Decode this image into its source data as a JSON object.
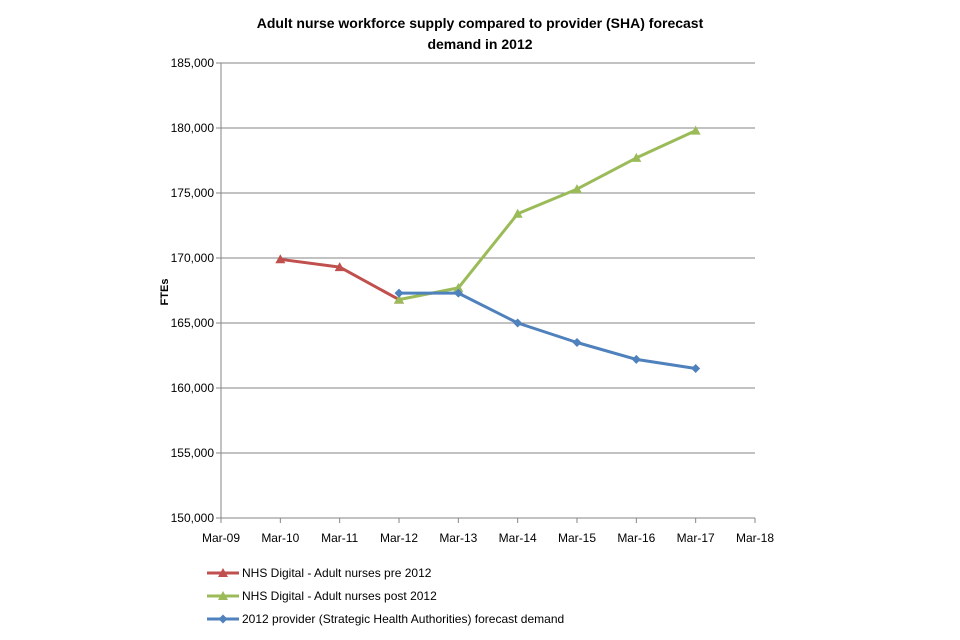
{
  "chart_data": {
    "type": "line",
    "title_lines": [
      "Adult nurse workforce supply compared to provider (SHA) forecast",
      "demand in 2012"
    ],
    "xlabel": "",
    "ylabel": "FTEs",
    "categories": [
      "Mar-09",
      "Mar-10",
      "Mar-11",
      "Mar-12",
      "Mar-13",
      "Mar-14",
      "Mar-15",
      "Mar-16",
      "Mar-17",
      "Mar-18"
    ],
    "ylim": [
      150000,
      185000
    ],
    "yticks": [
      150000,
      155000,
      160000,
      165000,
      170000,
      175000,
      180000,
      185000
    ],
    "ytick_labels": [
      "150,000",
      "155,000",
      "160,000",
      "165,000",
      "170,000",
      "175,000",
      "180,000",
      "185,000"
    ],
    "grid": true,
    "legend_position": "bottom",
    "series": [
      {
        "name": "NHS Digital - Adult nurses pre 2012",
        "color": "#C0504D",
        "marker": "triangle",
        "x": [
          "Mar-10",
          "Mar-11",
          "Mar-12"
        ],
        "values": [
          169900,
          169300,
          166800
        ]
      },
      {
        "name": "NHS Digital - Adult nurses post 2012",
        "color": "#9BBB59",
        "marker": "triangle",
        "x": [
          "Mar-12",
          "Mar-13",
          "Mar-14",
          "Mar-15",
          "Mar-16",
          "Mar-17"
        ],
        "values": [
          166800,
          167700,
          173400,
          175300,
          177700,
          179800
        ]
      },
      {
        "name": "2012 provider (Strategic Health Authorities) forecast demand",
        "color": "#4F81BD",
        "marker": "diamond",
        "x": [
          "Mar-12",
          "Mar-13",
          "Mar-14",
          "Mar-15",
          "Mar-16",
          "Mar-17"
        ],
        "values": [
          167300,
          167300,
          165000,
          163500,
          162200,
          161500
        ]
      }
    ]
  }
}
